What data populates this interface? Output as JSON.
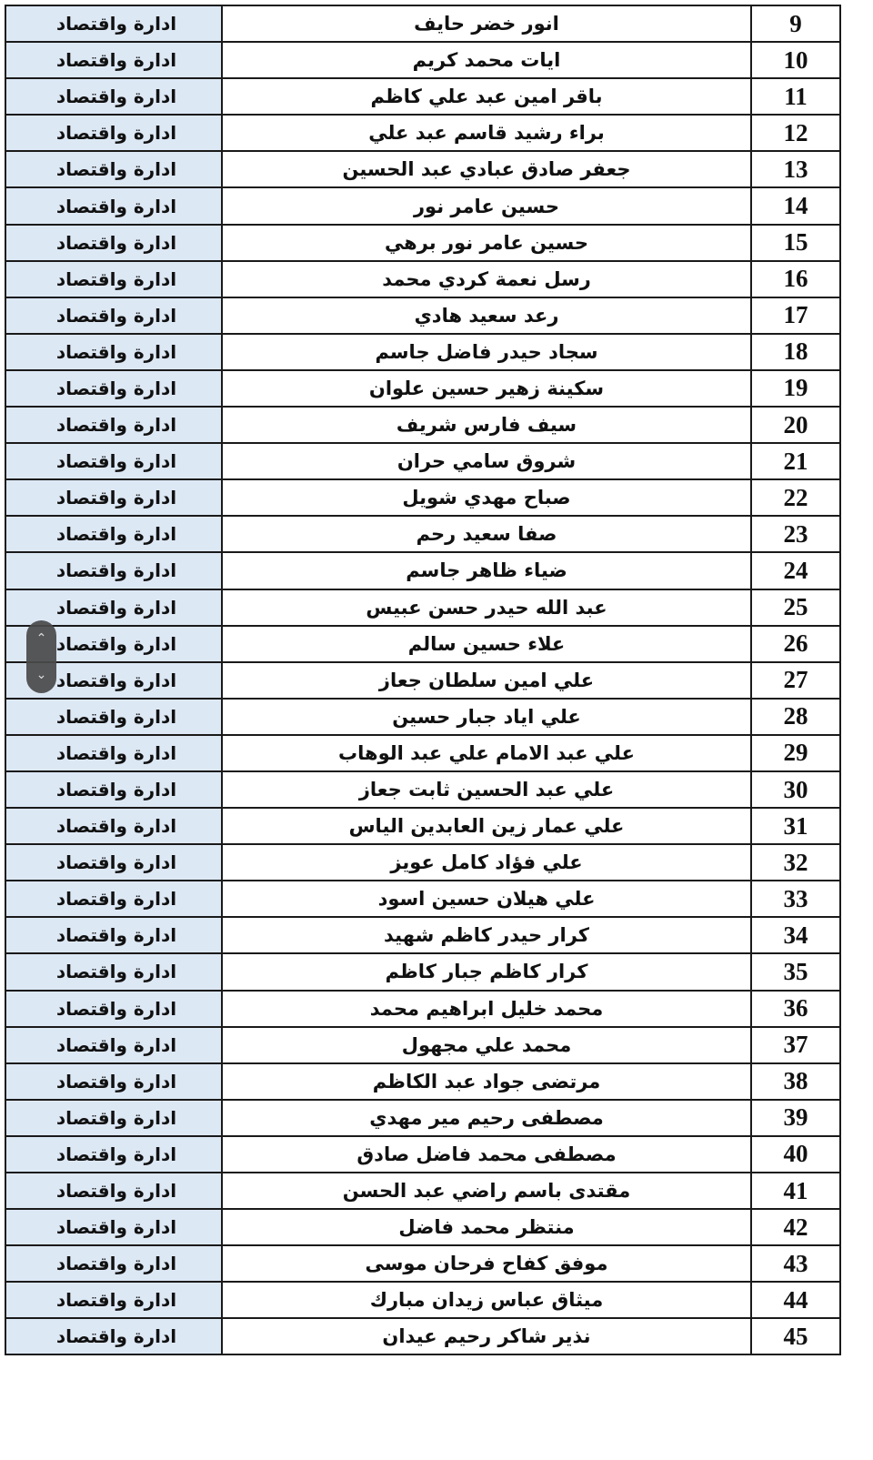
{
  "colors": {
    "dept_bg": "#dde8f5",
    "border": "#1a1a1a",
    "scroll_pill": "#4a4a4a"
  },
  "scroll_control": {
    "up_icon": "chevron-up-icon",
    "down_icon": "chevron-down-icon",
    "up_glyph": "⌃",
    "down_glyph": "⌄"
  },
  "rows": [
    {
      "num": "9",
      "name": "انور خضر حايف",
      "dept": "ادارة واقتصاد"
    },
    {
      "num": "10",
      "name": "ايات محمد كريم",
      "dept": "ادارة واقتصاد"
    },
    {
      "num": "11",
      "name": "باقر امين عبد علي كاظم",
      "dept": "ادارة واقتصاد"
    },
    {
      "num": "12",
      "name": "براء رشيد قاسم عبد علي",
      "dept": "ادارة واقتصاد"
    },
    {
      "num": "13",
      "name": "جعفر صادق عبادي عبد الحسين",
      "dept": "ادارة واقتصاد"
    },
    {
      "num": "14",
      "name": "حسين عامر نور",
      "dept": "ادارة واقتصاد"
    },
    {
      "num": "15",
      "name": "حسين عامر نور برهي",
      "dept": "ادارة واقتصاد"
    },
    {
      "num": "16",
      "name": "رسل نعمة كردي محمد",
      "dept": "ادارة واقتصاد"
    },
    {
      "num": "17",
      "name": "رعد سعيد هادي",
      "dept": "ادارة واقتصاد"
    },
    {
      "num": "18",
      "name": "سجاد حيدر فاضل جاسم",
      "dept": "ادارة واقتصاد"
    },
    {
      "num": "19",
      "name": "سكينة زهير حسين علوان",
      "dept": "ادارة واقتصاد"
    },
    {
      "num": "20",
      "name": "سيف فارس شريف",
      "dept": "ادارة واقتصاد"
    },
    {
      "num": "21",
      "name": "شروق سامي حران",
      "dept": "ادارة واقتصاد"
    },
    {
      "num": "22",
      "name": "صباح مهدي شويل",
      "dept": "ادارة واقتصاد"
    },
    {
      "num": "23",
      "name": "صفا سعيد رحم",
      "dept": "ادارة واقتصاد"
    },
    {
      "num": "24",
      "name": "ضياء ظاهر جاسم",
      "dept": "ادارة واقتصاد"
    },
    {
      "num": "25",
      "name": "عبد الله حيدر حسن عبيس",
      "dept": "ادارة واقتصاد"
    },
    {
      "num": "26",
      "name": "علاء حسين سالم",
      "dept": "ادارة واقتصاد"
    },
    {
      "num": "27",
      "name": "علي امين سلطان جعاز",
      "dept": "ادارة واقتصاد"
    },
    {
      "num": "28",
      "name": "علي اياد جبار حسين",
      "dept": "ادارة واقتصاد"
    },
    {
      "num": "29",
      "name": "علي عبد الامام علي عبد الوهاب",
      "dept": "ادارة واقتصاد"
    },
    {
      "num": "30",
      "name": "علي عبد الحسين ثابت جعاز",
      "dept": "ادارة واقتصاد"
    },
    {
      "num": "31",
      "name": "علي عمار زين العابدين الياس",
      "dept": "ادارة واقتصاد"
    },
    {
      "num": "32",
      "name": "علي فؤاد كامل عويز",
      "dept": "ادارة واقتصاد"
    },
    {
      "num": "33",
      "name": "علي هيلان حسين اسود",
      "dept": "ادارة واقتصاد"
    },
    {
      "num": "34",
      "name": "كرار حيدر كاظم شهيد",
      "dept": "ادارة واقتصاد"
    },
    {
      "num": "35",
      "name": "كرار كاظم جبار كاظم",
      "dept": "ادارة واقتصاد"
    },
    {
      "num": "36",
      "name": "محمد خليل ابراهيم محمد",
      "dept": "ادارة واقتصاد"
    },
    {
      "num": "37",
      "name": "محمد علي مجهول",
      "dept": "ادارة واقتصاد"
    },
    {
      "num": "38",
      "name": "مرتضى جواد عبد الكاظم",
      "dept": "ادارة واقتصاد"
    },
    {
      "num": "39",
      "name": "مصطفى رحيم مير مهدي",
      "dept": "ادارة واقتصاد"
    },
    {
      "num": "40",
      "name": "مصطفى محمد فاضل صادق",
      "dept": "ادارة واقتصاد"
    },
    {
      "num": "41",
      "name": "مقتدى باسم راضي عبد الحسن",
      "dept": "ادارة واقتصاد"
    },
    {
      "num": "42",
      "name": "منتظر محمد فاضل",
      "dept": "ادارة واقتصاد"
    },
    {
      "num": "43",
      "name": "موفق كفاح فرحان موسى",
      "dept": "ادارة واقتصاد"
    },
    {
      "num": "44",
      "name": "ميثاق عباس زيدان مبارك",
      "dept": "ادارة واقتصاد"
    },
    {
      "num": "45",
      "name": "نذير شاكر رحيم عيدان",
      "dept": "ادارة واقتصاد"
    }
  ]
}
